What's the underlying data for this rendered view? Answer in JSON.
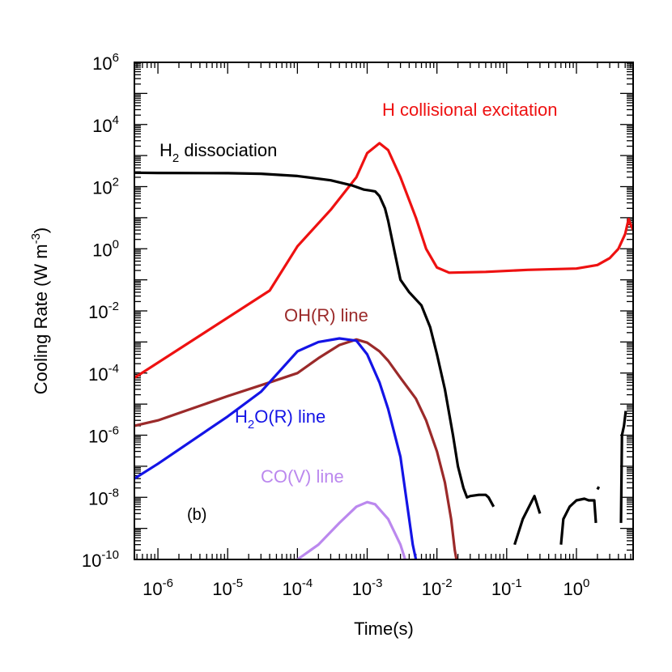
{
  "chart_data": {
    "type": "line",
    "x_scale": "log",
    "y_scale": "log",
    "xlabel": "Time(s)",
    "ylabel": "Cooling Rate (W m-3)",
    "xlim": [
      4.6e-07,
      6.5
    ],
    "ylim": [
      1e-10,
      1000000.0
    ],
    "x_tick_labels": [
      "10-6",
      "10-5",
      "10-4",
      "10-3",
      "10-2",
      "10-1",
      "100"
    ],
    "y_tick_labels": [
      "10-10",
      "10-8",
      "10-6",
      "10-4",
      "10-2",
      "100",
      "102",
      "104",
      "106"
    ],
    "panel_label": "(b)",
    "grid": false,
    "series": [
      {
        "name": "H collisional excitation",
        "color": "#ee1111",
        "points": [
          [
            4.6e-07,
            7e-05
          ],
          [
            4e-05,
            0.045
          ],
          [
            0.0001,
            1.2
          ],
          [
            0.0003,
            18
          ],
          [
            0.0007,
            200
          ],
          [
            0.001,
            1200
          ],
          [
            0.0015,
            2500
          ],
          [
            0.002,
            1500
          ],
          [
            0.003,
            200
          ],
          [
            0.005,
            10
          ],
          [
            0.007,
            1
          ],
          [
            0.01,
            0.25
          ],
          [
            0.015,
            0.17
          ],
          [
            0.05,
            0.18
          ],
          [
            0.2,
            0.21
          ],
          [
            1,
            0.23
          ],
          [
            2,
            0.3
          ],
          [
            3,
            0.5
          ],
          [
            4,
            1
          ],
          [
            5,
            3
          ],
          [
            5.6,
            9
          ],
          [
            6.0,
            6
          ],
          [
            6.5,
            4
          ]
        ]
      },
      {
        "name": "H2 dissociation",
        "color": "#000000",
        "points": [
          [
            4.6e-07,
            280
          ],
          [
            1e-06,
            275
          ],
          [
            1e-05,
            270
          ],
          [
            3e-05,
            260
          ],
          [
            0.0001,
            220
          ],
          [
            0.0003,
            160
          ],
          [
            0.0006,
            110
          ],
          [
            0.0009,
            80
          ],
          [
            0.0011,
            75
          ],
          [
            0.0013,
            70
          ],
          [
            0.0015,
            50
          ],
          [
            0.0018,
            20
          ],
          [
            0.002,
            8
          ],
          [
            0.0025,
            0.7
          ],
          [
            0.003,
            0.1
          ],
          [
            0.004,
            0.04
          ],
          [
            0.006,
            0.015
          ],
          [
            0.008,
            0.003
          ],
          [
            0.01,
            0.0004
          ],
          [
            0.013,
            3e-05
          ],
          [
            0.017,
            1e-06
          ],
          [
            0.02,
            1e-07
          ],
          [
            0.024,
            2e-08
          ],
          [
            0.027,
            1e-08
          ],
          [
            0.03,
            1.1e-08
          ],
          [
            0.04,
            1.2e-08
          ],
          [
            0.05,
            1.2e-08
          ],
          [
            0.055,
            1e-08
          ],
          [
            0.065,
            5e-09
          ]
        ],
        "segments": [
          [
            [
              0.13,
              3e-10
            ],
            [
              0.17,
              2e-09
            ],
            [
              0.25,
              1.1e-08
            ],
            [
              0.3,
              3e-09
            ]
          ],
          [
            [
              0.6,
              3e-10
            ],
            [
              0.65,
              2e-09
            ],
            [
              0.8,
              5e-09
            ],
            [
              1.0,
              8e-09
            ],
            [
              1.3,
              9e-09
            ],
            [
              1.5,
              8e-09
            ],
            [
              1.8,
              8e-09
            ],
            [
              1.9,
              1.5e-09
            ]
          ],
          [
            [
              2.0,
              1.8e-08
            ],
            [
              2.1,
              2.2e-08
            ]
          ],
          [
            [
              4.35,
              1.5e-09
            ],
            [
              4.5,
              1e-06
            ],
            [
              4.8,
              2e-06
            ],
            [
              5.1,
              6e-06
            ]
          ]
        ]
      },
      {
        "name": "OH(R) line",
        "color": "#9b2a2a",
        "points": [
          [
            4.6e-07,
            2e-06
          ],
          [
            1e-06,
            3e-06
          ],
          [
            1e-05,
            1.8e-05
          ],
          [
            4e-05,
            5e-05
          ],
          [
            0.0001,
            0.0001
          ],
          [
            0.0002,
            0.0003
          ],
          [
            0.0004,
            0.0008
          ],
          [
            0.0007,
            0.0012
          ],
          [
            0.001,
            0.00095
          ],
          [
            0.0015,
            0.0005
          ],
          [
            0.002,
            0.00025
          ],
          [
            0.003,
            7e-05
          ],
          [
            0.005,
            1.5e-05
          ],
          [
            0.007,
            3e-06
          ],
          [
            0.01,
            3e-07
          ],
          [
            0.013,
            3e-08
          ],
          [
            0.016,
            2e-09
          ],
          [
            0.018,
            2e-10
          ],
          [
            0.019,
            1e-10
          ]
        ]
      },
      {
        "name": "H2O(R) line",
        "color": "#1414e6",
        "points": [
          [
            4.6e-07,
            4e-08
          ],
          [
            1e-06,
            1.2e-07
          ],
          [
            1e-05,
            4e-06
          ],
          [
            3e-05,
            2.5e-05
          ],
          [
            0.0001,
            0.0005
          ],
          [
            0.0002,
            0.001
          ],
          [
            0.0004,
            0.0013
          ],
          [
            0.0007,
            0.0011
          ],
          [
            0.001,
            0.0004
          ],
          [
            0.0015,
            5e-05
          ],
          [
            0.002,
            7e-06
          ],
          [
            0.003,
            2e-07
          ],
          [
            0.004,
            2e-09
          ],
          [
            0.0045,
            3e-10
          ],
          [
            0.005,
            1e-10
          ]
        ]
      },
      {
        "name": "CO(V) line",
        "color": "#bb88ee",
        "points": [
          [
            0.0001,
            1e-10
          ],
          [
            0.0002,
            3e-10
          ],
          [
            0.0004,
            1.5e-09
          ],
          [
            0.0007,
            5e-09
          ],
          [
            0.001,
            7e-09
          ],
          [
            0.0013,
            6e-09
          ],
          [
            0.002,
            2e-09
          ],
          [
            0.003,
            3e-10
          ],
          [
            0.0035,
            1e-10
          ]
        ]
      }
    ]
  }
}
